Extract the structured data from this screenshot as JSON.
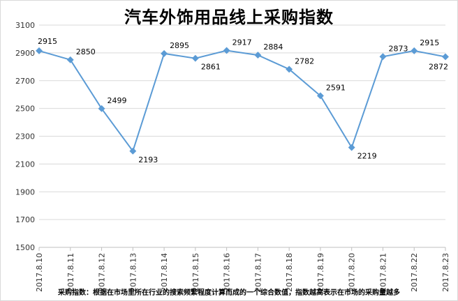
{
  "chart_data": {
    "type": "line",
    "title": "汽车外饰用品线上采购指数",
    "categories": [
      "2017.8.10",
      "2017.8.11",
      "2017.8.12",
      "2017.8.13",
      "2017.8.14",
      "2017.8.15",
      "2017.8.16",
      "2017.8.17",
      "2017.8.18",
      "2017.8.19",
      "2017.8.20",
      "2017.8.21",
      "2017.8.22",
      "2017.8.23"
    ],
    "values": [
      2915,
      2850,
      2499,
      2193,
      2895,
      2861,
      2917,
      2884,
      2782,
      2591,
      2219,
      2873,
      2915,
      2872
    ],
    "ylim": [
      1500,
      3100
    ],
    "yticks": [
      1500,
      1700,
      1900,
      2100,
      2300,
      2500,
      2700,
      2900,
      3100
    ],
    "grid": true,
    "line_color": "#5b9bd5",
    "footnote": "采购指数：根据在市场里所在行业的搜索频繁程度计算而成的一个综合数值，指数越高表示在市场的采购量越多"
  }
}
